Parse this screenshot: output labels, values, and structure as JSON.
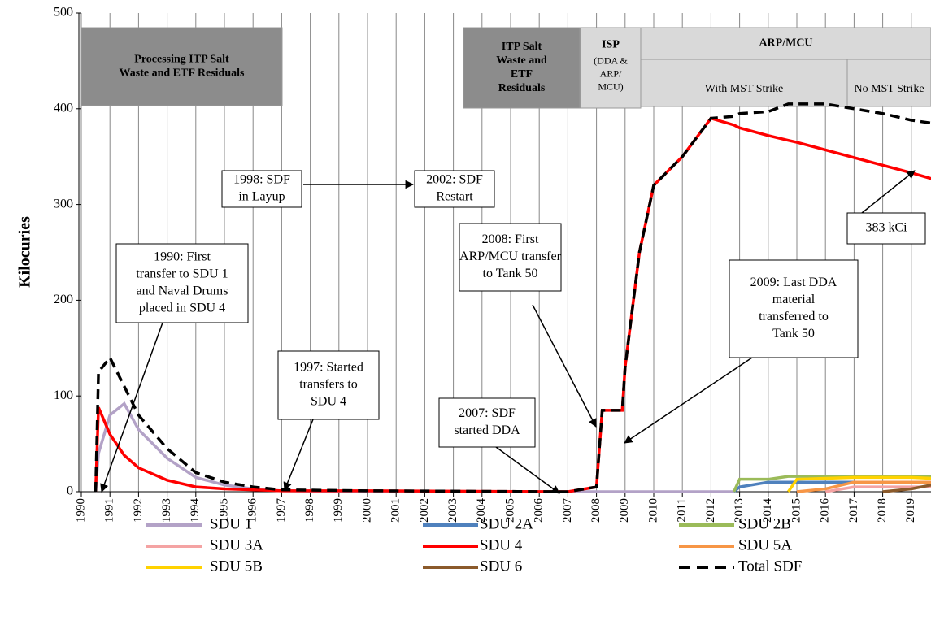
{
  "chart_data": {
    "type": "line",
    "ylabel": "Kilocuries",
    "xlim": [
      1990,
      2019.7
    ],
    "ylim": [
      0,
      500
    ],
    "yticks": [
      0,
      100,
      200,
      300,
      400,
      500
    ],
    "xticks": [
      1990,
      1991,
      1992,
      1993,
      1994,
      1995,
      1996,
      1997,
      1998,
      1999,
      2000,
      2001,
      2002,
      2003,
      2004,
      2005,
      2006,
      2007,
      2008,
      2009,
      2010,
      2011,
      2012,
      2013,
      2014,
      2015,
      2016,
      2017,
      2018,
      2019
    ],
    "grid": true,
    "x": [
      1990.5,
      1990.6,
      1991,
      1991.5,
      1992,
      1993,
      1994,
      1995,
      1996,
      1997,
      2000,
      2007,
      2008.0,
      2008.2,
      2008.9,
      2009.0,
      2009.5,
      2010,
      2011,
      2012,
      2012.8,
      2013,
      2014,
      2014.7,
      2015,
      2016,
      2017,
      2018,
      2019,
      2019.7
    ],
    "series": [
      {
        "name": "SDU 1",
        "color": "#b3a2c7",
        "values": [
          0,
          40,
          80,
          92,
          65,
          35,
          15,
          7,
          3,
          1,
          0,
          0,
          0,
          0,
          0,
          0,
          0,
          0,
          0,
          0,
          0,
          null,
          null,
          null,
          null,
          null,
          null,
          null,
          null,
          null
        ]
      },
      {
        "name": "SDU 2A",
        "color": "#4f81bd",
        "values": [
          null,
          null,
          null,
          null,
          null,
          null,
          null,
          null,
          null,
          null,
          null,
          null,
          null,
          null,
          null,
          null,
          null,
          null,
          null,
          null,
          0,
          5,
          10,
          10,
          10,
          10,
          10,
          10,
          10,
          10
        ]
      },
      {
        "name": "SDU 2B",
        "color": "#9bbb59",
        "values": [
          null,
          null,
          null,
          null,
          null,
          null,
          null,
          null,
          null,
          null,
          null,
          null,
          null,
          null,
          null,
          null,
          null,
          null,
          null,
          null,
          0,
          13,
          13,
          16,
          16,
          16,
          16,
          16,
          16,
          16
        ]
      },
      {
        "name": "SDU 3A",
        "color": "#f4a3a3",
        "values": [
          null,
          null,
          null,
          null,
          null,
          null,
          null,
          null,
          null,
          null,
          null,
          null,
          null,
          null,
          null,
          null,
          null,
          null,
          null,
          null,
          null,
          null,
          null,
          null,
          null,
          0,
          5,
          5,
          5,
          5
        ]
      },
      {
        "name": "SDU 4",
        "color": "#ff0000",
        "values": [
          0,
          88,
          60,
          38,
          25,
          12,
          5,
          3,
          2,
          1,
          1,
          0,
          5,
          85,
          85,
          130,
          250,
          320,
          350,
          390,
          383,
          380,
          372,
          367,
          365,
          357,
          349,
          341,
          333,
          327
        ]
      },
      {
        "name": "SDU 5A",
        "color": "#f79646",
        "values": [
          null,
          null,
          null,
          null,
          null,
          null,
          null,
          null,
          null,
          null,
          null,
          null,
          null,
          null,
          null,
          null,
          null,
          null,
          null,
          null,
          null,
          null,
          null,
          null,
          0,
          3,
          10,
          10,
          10,
          10
        ]
      },
      {
        "name": "SDU 5B",
        "color": "#ffd200",
        "values": [
          null,
          null,
          null,
          null,
          null,
          null,
          null,
          null,
          null,
          null,
          null,
          null,
          null,
          null,
          null,
          null,
          null,
          null,
          null,
          null,
          null,
          null,
          null,
          0,
          13,
          14,
          15,
          15,
          15,
          14
        ]
      },
      {
        "name": "SDU 6",
        "color": "#8b5a2b",
        "values": [
          null,
          null,
          null,
          null,
          null,
          null,
          null,
          null,
          null,
          null,
          null,
          null,
          null,
          null,
          null,
          null,
          null,
          null,
          null,
          null,
          null,
          null,
          null,
          null,
          null,
          null,
          null,
          0,
          3,
          7
        ]
      },
      {
        "name": "Total SDF",
        "color": "#000000",
        "dashed": true,
        "values": [
          0,
          125,
          140,
          110,
          80,
          45,
          20,
          10,
          5,
          2,
          1,
          0,
          5,
          85,
          85,
          130,
          250,
          320,
          350,
          390,
          392,
          395,
          397,
          405,
          405,
          405,
          400,
          395,
          388,
          385
        ]
      }
    ],
    "period_labels": [
      {
        "lines": [
          "Processing  ITP Salt",
          "Waste and ETF Residuals"
        ]
      },
      {
        "lines": [
          "ITP Salt",
          "Waste and",
          "ETF",
          "Residuals"
        ]
      },
      {
        "lines": [
          "ISP",
          "(DDA &",
          "ARP/",
          "MCU)"
        ]
      },
      {
        "lines": [
          "ARP/MCU"
        ]
      },
      {
        "lines": [
          "With MST Strike"
        ]
      },
      {
        "lines": [
          "No MST Strike"
        ]
      }
    ],
    "annotations": [
      {
        "lines": [
          "1990: First",
          "transfer to SDU 1",
          "and Naval Drums",
          "placed in SDU 4"
        ]
      },
      {
        "lines": [
          "1997: Started",
          "transfers to",
          "SDU 4"
        ]
      },
      {
        "lines": [
          "1998: SDF",
          "in Layup"
        ]
      },
      {
        "lines": [
          "2002: SDF",
          "Restart"
        ]
      },
      {
        "lines": [
          "2007: SDF",
          "started DDA"
        ]
      },
      {
        "lines": [
          "2008:  First",
          "ARP/MCU transfer",
          "to Tank  50"
        ]
      },
      {
        "lines": [
          "2009:  Last DDA",
          "material",
          "transferred to",
          "Tank 50"
        ]
      },
      {
        "lines": [
          "383 kCi"
        ]
      }
    ]
  }
}
